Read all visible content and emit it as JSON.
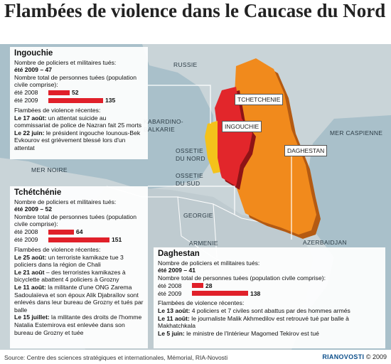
{
  "title": "Flambées de violence dans le Caucase du Nord",
  "map_labels": {
    "russie": "RUSSIE",
    "kabardino": "KABARDINO-BALKARIE",
    "ingouchie": "INGOUCHIE",
    "tchetchenie": "TCHETCHENIE",
    "daghestan": "DAGHESTAN",
    "ossetie_nord": "OSSETIE DU NORD",
    "ossetie_sud": "OSSETIE DU SUD",
    "georgie": "GEORGIE",
    "armenie": "ARMENIE",
    "azerbaidjan": "AZERBAIDJAN",
    "mer_noire": "MER NOIRE",
    "mer_caspienne": "MER CASPIENNE"
  },
  "colors": {
    "sea": "#a9c0ca",
    "land": "#c9d4d8",
    "daghestan": "#f18a1c",
    "tchetchenie": "#e2262b",
    "ingouchie": "#f4c21b",
    "bar": "#e0202a"
  },
  "ingouchie": {
    "heading": "Ingouchie",
    "police_label": "Nombre de policiers et militaires tués:",
    "police_value": "été 2009 – 47",
    "total_label": "Nombre total de personnes tuées (population civile comprise):",
    "bars": [
      {
        "label": "été 2008",
        "value": 52
      },
      {
        "label": "été 2009",
        "value": 135
      }
    ],
    "recent_label": "Flambées de violence récentes:",
    "events": [
      {
        "date": "Le 17 août:",
        "text": " un attentat suicide au commissariat de police de Nazran fait 25 morts"
      },
      {
        "date": "Le 22 juin:",
        "text": " le président ingouche Iounous-Bek Evkourov est grièvement blessé lors d'un attentat"
      }
    ]
  },
  "tchetchenie": {
    "heading": "Tchétchénie",
    "police_label": "Nombre de policiers et militaires tués:",
    "police_value": "été 2009 – 52",
    "total_label": "Nombre total de personnes tuées (population civile comprise):",
    "bars": [
      {
        "label": "été 2008",
        "value": 64
      },
      {
        "label": "été 2009",
        "value": 151
      }
    ],
    "recent_label": "Flambées de violence récentes:",
    "events": [
      {
        "date": "Le 25 août:",
        "text": " un terroriste kamikaze tue 3 policiers dans la région de Chali"
      },
      {
        "date": "Le 21 août",
        "text": " – des terroristes kamikazes à bicyclette abattent 4 policiers à Grozny"
      },
      {
        "date": "Le 11 août:",
        "text": " la militante d'une ONG Zarema Sadoulaïeva et son époux Alik Djabraïlov sont enlevés dans leur bureau de Grozny et tués par balle"
      },
      {
        "date": "Le 15 juillet:",
        "text": " la militante des droits de l'homme Natalia Estemirova est enlevée dans son bureau de Grozny et tuée"
      }
    ]
  },
  "daghestan": {
    "heading": "Daghestan",
    "police_label": "Nombre de policiers et militaires tués:",
    "police_value": "été 2009 – 41",
    "total_label": "Nombre total de personnes tuées (population civile comprise):",
    "bars": [
      {
        "label": "été 2008",
        "value": 28
      },
      {
        "label": "été 2009",
        "value": 138
      }
    ],
    "recent_label": "Flambées de violence récentes:",
    "events": [
      {
        "date": "Le 13 août:",
        "text": " 4 policiers et 7 civiles sont abattus par des hommes armés"
      },
      {
        "date": "Le 11 août:",
        "text": " le journaliste Malik Akhmedilov est retrouvé tué par balle à Makhatchkala"
      },
      {
        "date": "Le 5 juin:",
        "text": " le ministre de l'Intérieur Magomed Tekirov est tué"
      }
    ]
  },
  "source": "Source: Centre des sciences stratégiques et internationales, Mémorial, RIA-Novosti",
  "credit_brand": "RIANOVOSTI",
  "credit_year": "© 2009"
}
